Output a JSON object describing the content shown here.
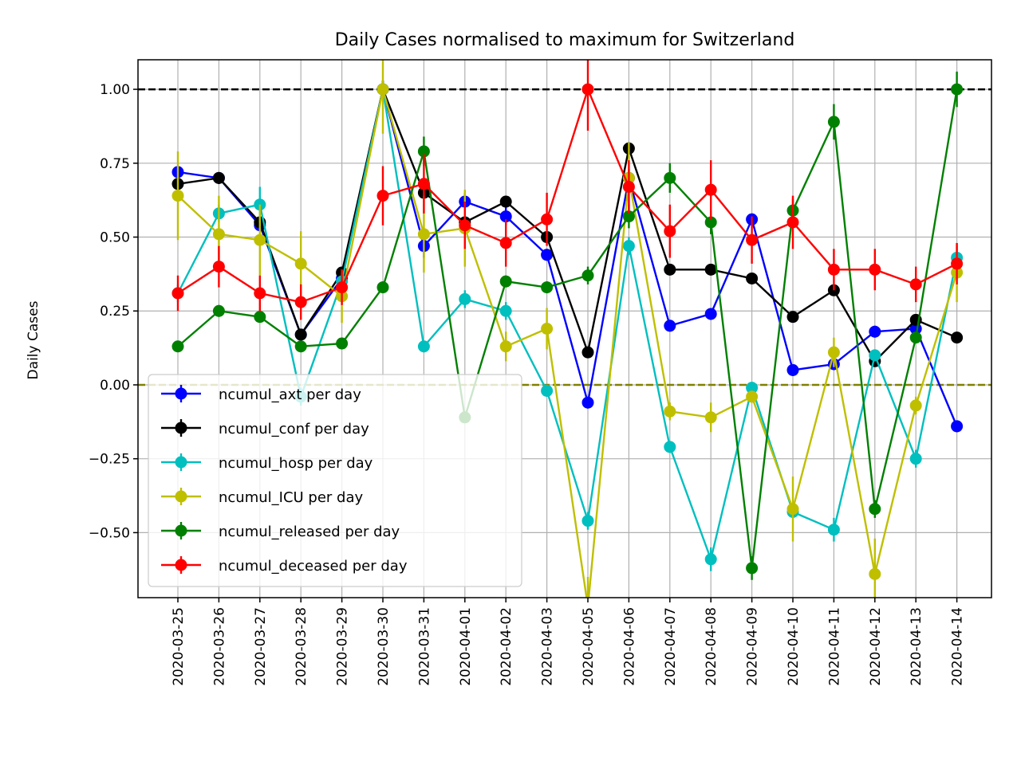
{
  "chart_data": {
    "type": "line",
    "title": "Daily Cases normalised to maximum for Switzerland",
    "xlabel": "",
    "ylabel": "Daily Cases",
    "ylim": [
      -0.72,
      1.1
    ],
    "yticks": [
      1.0,
      0.75,
      0.5,
      0.25,
      0.0,
      -0.25,
      -0.5
    ],
    "ytick_labels": [
      "1.00",
      "0.75",
      "0.50",
      "0.25",
      "0.00",
      "−0.25",
      "−0.50"
    ],
    "grid": true,
    "legend_position": "lower-left",
    "reference_lines": [
      {
        "y": 1.0,
        "color": "#000000",
        "style": "dashed"
      },
      {
        "y": 0.0,
        "color": "#808000",
        "style": "dashed"
      }
    ],
    "x": [
      "2020-03-25",
      "2020-03-26",
      "2020-03-27",
      "2020-03-28",
      "2020-03-29",
      "2020-03-30",
      "2020-03-31",
      "2020-04-01",
      "2020-04-02",
      "2020-04-03",
      "2020-04-05",
      "2020-04-06",
      "2020-04-07",
      "2020-04-08",
      "2020-04-09",
      "2020-04-10",
      "2020-04-11",
      "2020-04-12",
      "2020-04-13",
      "2020-04-14"
    ],
    "series": [
      {
        "name": "ncumul_axt per day",
        "color": "#0000ff",
        "values": [
          0.72,
          0.7,
          0.54,
          0.17,
          0.36,
          1.0,
          0.47,
          0.62,
          0.57,
          0.44,
          -0.06,
          0.7,
          0.2,
          0.24,
          0.56,
          0.05,
          0.07,
          0.18,
          0.19,
          -0.14
        ],
        "errors": [
          0.02,
          0.02,
          0.02,
          0.01,
          0.02,
          0.03,
          0.04,
          0.03,
          0.03,
          0.02,
          0.02,
          0.03,
          0.02,
          0.02,
          0.02,
          0.02,
          0.02,
          0.02,
          0.02,
          0.02
        ]
      },
      {
        "name": "ncumul_conf per day",
        "color": "#000000",
        "values": [
          0.68,
          0.7,
          0.55,
          0.17,
          0.38,
          1.0,
          0.65,
          0.55,
          0.62,
          0.5,
          0.11,
          0.8,
          0.39,
          0.39,
          0.36,
          0.23,
          0.32,
          0.08,
          0.22,
          0.16
        ],
        "errors": [
          0.02,
          0.02,
          0.02,
          0.01,
          0.02,
          0.03,
          0.02,
          0.02,
          0.02,
          0.02,
          0.01,
          0.02,
          0.01,
          0.01,
          0.01,
          0.01,
          0.01,
          0.01,
          0.01,
          0.01
        ]
      },
      {
        "name": "ncumul_hosp per day",
        "color": "#00bfbf",
        "values": [
          0.31,
          0.58,
          0.61,
          -0.04,
          0.35,
          1.0,
          0.13,
          0.29,
          0.25,
          -0.02,
          -0.46,
          0.47,
          -0.21,
          -0.59,
          -0.01,
          -0.43,
          -0.49,
          0.1,
          -0.25,
          0.43
        ],
        "errors": [
          0.03,
          0.03,
          0.06,
          0.03,
          0.03,
          0.03,
          0.02,
          0.03,
          0.03,
          0.02,
          0.03,
          0.03,
          0.02,
          0.04,
          0.02,
          0.02,
          0.04,
          0.02,
          0.03,
          0.04
        ]
      },
      {
        "name": "ncumul_ICU per day",
        "color": "#bfbf00",
        "values": [
          0.64,
          0.51,
          0.49,
          0.41,
          0.3,
          1.0,
          0.51,
          0.53,
          0.13,
          0.19,
          -0.75,
          0.7,
          -0.09,
          -0.11,
          -0.04,
          -0.42,
          0.11,
          -0.64,
          -0.07,
          0.38
        ],
        "errors": [
          0.15,
          0.13,
          0.12,
          0.11,
          0.09,
          0.15,
          0.13,
          0.13,
          0.05,
          0.07,
          0.1,
          0.12,
          0.03,
          0.05,
          0.02,
          0.11,
          0.05,
          0.12,
          0.03,
          0.1
        ]
      },
      {
        "name": "ncumul_released per day",
        "color": "#008000",
        "values": [
          0.13,
          0.25,
          0.23,
          0.13,
          0.14,
          0.33,
          0.79,
          -0.11,
          0.35,
          0.33,
          0.37,
          0.57,
          0.7,
          0.55,
          -0.62,
          0.59,
          0.89,
          -0.42,
          0.16,
          1.0
        ],
        "errors": [
          0.01,
          0.02,
          0.02,
          0.01,
          0.01,
          0.02,
          0.05,
          0.01,
          0.02,
          0.02,
          0.03,
          0.04,
          0.05,
          0.04,
          0.04,
          0.04,
          0.06,
          0.03,
          0.01,
          0.06
        ]
      },
      {
        "name": "ncumul_deceased per day",
        "color": "#ff0000",
        "values": [
          0.31,
          0.4,
          0.31,
          0.28,
          0.33,
          0.64,
          0.68,
          0.54,
          0.48,
          0.56,
          1.0,
          0.67,
          0.52,
          0.66,
          0.49,
          0.55,
          0.39,
          0.39,
          0.34,
          0.41
        ],
        "errors": [
          0.06,
          0.07,
          0.06,
          0.06,
          0.06,
          0.1,
          0.1,
          0.08,
          0.08,
          0.09,
          0.14,
          0.09,
          0.09,
          0.1,
          0.08,
          0.09,
          0.07,
          0.07,
          0.06,
          0.07
        ]
      }
    ]
  }
}
